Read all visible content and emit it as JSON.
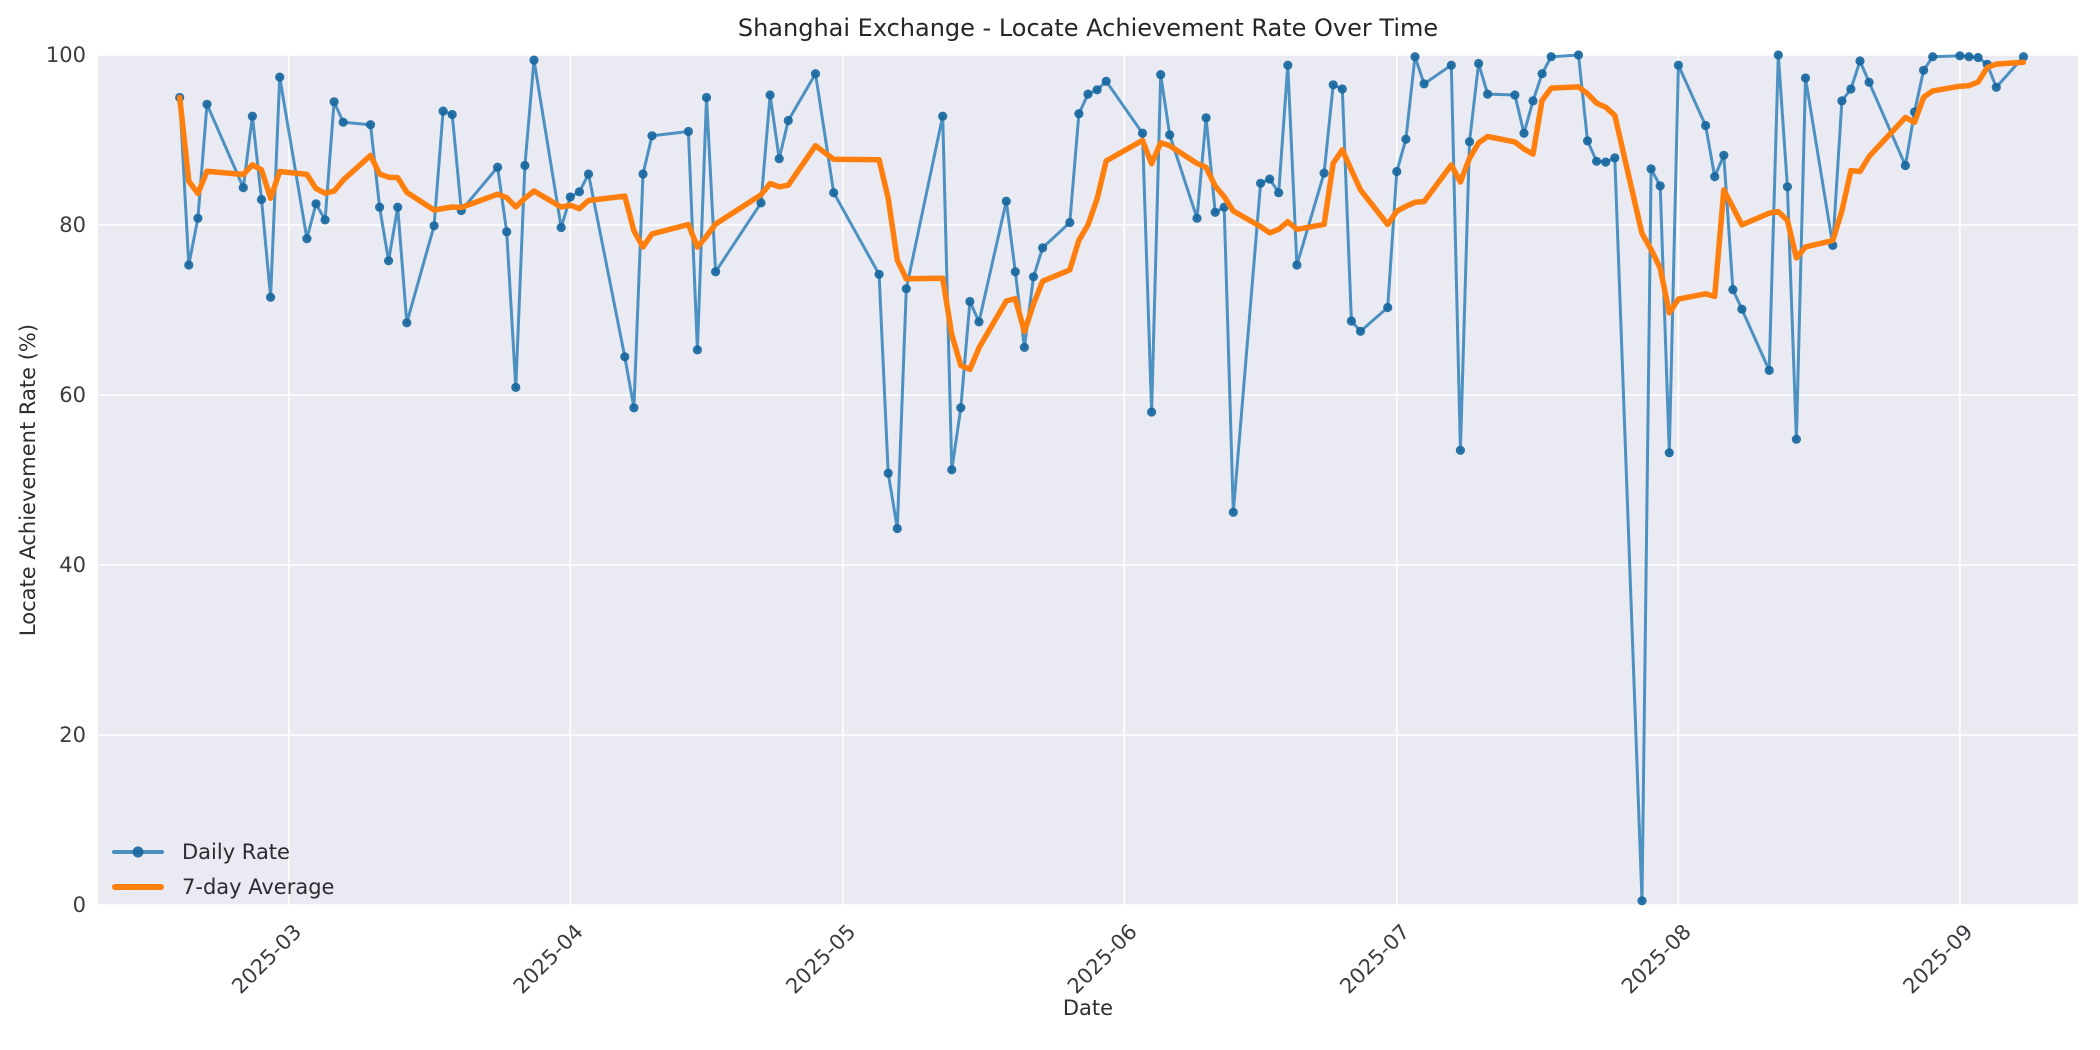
{
  "figure": {
    "background": "#ffffff",
    "axes_background": "#eaeaf2",
    "grid_color": "#ffffff"
  },
  "chart_data": {
    "type": "line",
    "title": "Shanghai Exchange - Locate Achievement Rate Over Time",
    "xlabel": "Date",
    "ylabel": "Locate Achievement Rate (%)",
    "ylim": [
      0,
      100
    ],
    "yticks": [
      0,
      20,
      40,
      60,
      80,
      100
    ],
    "xlim": [
      "2025-02-08",
      "2025-09-14"
    ],
    "xticks": [
      {
        "date": "2025-03-01",
        "label": "2025-03"
      },
      {
        "date": "2025-04-01",
        "label": "2025-04"
      },
      {
        "date": "2025-05-01",
        "label": "2025-05"
      },
      {
        "date": "2025-06-01",
        "label": "2025-06"
      },
      {
        "date": "2025-07-01",
        "label": "2025-07"
      },
      {
        "date": "2025-08-01",
        "label": "2025-08"
      },
      {
        "date": "2025-09-01",
        "label": "2025-09"
      }
    ],
    "grid": true,
    "legend": {
      "position": "lower-left",
      "entries": [
        {
          "label": "Daily Rate",
          "type": "line-marker",
          "color": "#4c8fbf"
        },
        {
          "label": "7-day Average",
          "type": "line",
          "color": "#ff7f0e"
        }
      ]
    },
    "series": [
      {
        "name": "Daily Rate",
        "style": "line-marker",
        "line_color": "rgba(31,119,180,0.78)",
        "marker_color": "rgba(23,103,160,0.92)",
        "points": [
          [
            "2025-02-17",
            95.0
          ],
          [
            "2025-02-18",
            75.3
          ],
          [
            "2025-02-19",
            80.8
          ],
          [
            "2025-02-20",
            94.2
          ],
          [
            "2025-02-24",
            84.4
          ],
          [
            "2025-02-25",
            92.8
          ],
          [
            "2025-02-26",
            83.0
          ],
          [
            "2025-02-27",
            71.5
          ],
          [
            "2025-02-28",
            97.4
          ],
          [
            "2025-03-03",
            78.4
          ],
          [
            "2025-03-04",
            82.5
          ],
          [
            "2025-03-05",
            80.6
          ],
          [
            "2025-03-06",
            94.5
          ],
          [
            "2025-03-07",
            92.1
          ],
          [
            "2025-03-10",
            91.8
          ],
          [
            "2025-03-11",
            82.1
          ],
          [
            "2025-03-12",
            75.8
          ],
          [
            "2025-03-13",
            82.1
          ],
          [
            "2025-03-14",
            68.5
          ],
          [
            "2025-03-17",
            79.9
          ],
          [
            "2025-03-18",
            93.4
          ],
          [
            "2025-03-19",
            93.0
          ],
          [
            "2025-03-20",
            81.7
          ],
          [
            "2025-03-24",
            86.8
          ],
          [
            "2025-03-25",
            79.2
          ],
          [
            "2025-03-26",
            60.9
          ],
          [
            "2025-03-27",
            87.0
          ],
          [
            "2025-03-28",
            99.4
          ],
          [
            "2025-03-31",
            79.7
          ],
          [
            "2025-04-01",
            83.3
          ],
          [
            "2025-04-02",
            83.9
          ],
          [
            "2025-04-03",
            86.0
          ],
          [
            "2025-04-07",
            64.5
          ],
          [
            "2025-04-08",
            58.5
          ],
          [
            "2025-04-09",
            86.0
          ],
          [
            "2025-04-10",
            90.5
          ],
          [
            "2025-04-14",
            91.0
          ],
          [
            "2025-04-15",
            65.3
          ],
          [
            "2025-04-16",
            95.0
          ],
          [
            "2025-04-17",
            74.5
          ],
          [
            "2025-04-22",
            82.6
          ],
          [
            "2025-04-23",
            95.3
          ],
          [
            "2025-04-24",
            87.8
          ],
          [
            "2025-04-25",
            92.3
          ],
          [
            "2025-04-28",
            97.8
          ],
          [
            "2025-04-30",
            83.8
          ],
          [
            "2025-05-05",
            74.2
          ],
          [
            "2025-05-06",
            50.8
          ],
          [
            "2025-05-07",
            44.3
          ],
          [
            "2025-05-08",
            72.5
          ],
          [
            "2025-05-12",
            92.8
          ],
          [
            "2025-05-13",
            51.2
          ],
          [
            "2025-05-14",
            58.5
          ],
          [
            "2025-05-15",
            71.0
          ],
          [
            "2025-05-16",
            68.6
          ],
          [
            "2025-05-19",
            82.8
          ],
          [
            "2025-05-20",
            74.5
          ],
          [
            "2025-05-21",
            65.6
          ],
          [
            "2025-05-22",
            73.9
          ],
          [
            "2025-05-23",
            77.3
          ],
          [
            "2025-05-26",
            80.3
          ],
          [
            "2025-05-27",
            93.1
          ],
          [
            "2025-05-28",
            95.4
          ],
          [
            "2025-05-29",
            95.9
          ],
          [
            "2025-05-30",
            96.9
          ],
          [
            "2025-06-03",
            90.8
          ],
          [
            "2025-06-04",
            58.0
          ],
          [
            "2025-06-05",
            97.7
          ],
          [
            "2025-06-06",
            90.6
          ],
          [
            "2025-06-09",
            80.8
          ],
          [
            "2025-06-10",
            92.6
          ],
          [
            "2025-06-11",
            81.5
          ],
          [
            "2025-06-12",
            82.1
          ],
          [
            "2025-06-13",
            46.2
          ],
          [
            "2025-06-16",
            84.9
          ],
          [
            "2025-06-17",
            85.4
          ],
          [
            "2025-06-18",
            83.8
          ],
          [
            "2025-06-19",
            98.8
          ],
          [
            "2025-06-20",
            75.3
          ],
          [
            "2025-06-23",
            86.1
          ],
          [
            "2025-06-24",
            96.5
          ],
          [
            "2025-06-25",
            96.0
          ],
          [
            "2025-06-26",
            68.7
          ],
          [
            "2025-06-27",
            67.5
          ],
          [
            "2025-06-30",
            70.3
          ],
          [
            "2025-07-01",
            86.3
          ],
          [
            "2025-07-02",
            90.1
          ],
          [
            "2025-07-03",
            99.8
          ],
          [
            "2025-07-04",
            96.6
          ],
          [
            "2025-07-07",
            98.8
          ],
          [
            "2025-07-08",
            53.5
          ],
          [
            "2025-07-09",
            89.8
          ],
          [
            "2025-07-10",
            99.0
          ],
          [
            "2025-07-11",
            95.4
          ],
          [
            "2025-07-14",
            95.3
          ],
          [
            "2025-07-15",
            90.8
          ],
          [
            "2025-07-16",
            94.6
          ],
          [
            "2025-07-17",
            97.8
          ],
          [
            "2025-07-18",
            99.8
          ],
          [
            "2025-07-21",
            100.0
          ],
          [
            "2025-07-22",
            89.9
          ],
          [
            "2025-07-23",
            87.5
          ],
          [
            "2025-07-24",
            87.4
          ],
          [
            "2025-07-25",
            87.9
          ],
          [
            "2025-07-28",
            0.5
          ],
          [
            "2025-07-29",
            86.6
          ],
          [
            "2025-07-30",
            84.6
          ],
          [
            "2025-07-31",
            53.2
          ],
          [
            "2025-08-01",
            98.8
          ],
          [
            "2025-08-04",
            91.7
          ],
          [
            "2025-08-05",
            85.7
          ],
          [
            "2025-08-06",
            88.2
          ],
          [
            "2025-08-07",
            72.4
          ],
          [
            "2025-08-08",
            70.1
          ],
          [
            "2025-08-11",
            62.9
          ],
          [
            "2025-08-12",
            100.0
          ],
          [
            "2025-08-13",
            84.5
          ],
          [
            "2025-08-14",
            54.8
          ],
          [
            "2025-08-15",
            97.3
          ],
          [
            "2025-08-18",
            77.6
          ],
          [
            "2025-08-19",
            94.6
          ],
          [
            "2025-08-20",
            96.0
          ],
          [
            "2025-08-21",
            99.3
          ],
          [
            "2025-08-22",
            96.8
          ],
          [
            "2025-08-26",
            87.0
          ],
          [
            "2025-08-27",
            93.3
          ],
          [
            "2025-08-28",
            98.2
          ],
          [
            "2025-08-29",
            99.8
          ],
          [
            "2025-09-01",
            99.9
          ],
          [
            "2025-09-02",
            99.8
          ],
          [
            "2025-09-03",
            99.7
          ],
          [
            "2025-09-04",
            98.9
          ],
          [
            "2025-09-05",
            96.2
          ],
          [
            "2025-09-08",
            99.8
          ]
        ]
      },
      {
        "name": "7-day Average",
        "style": "line",
        "line_color": "#ff7f0e",
        "derived": "rolling_mean_window_7_min_periods_1_of_Daily_Rate"
      }
    ]
  }
}
